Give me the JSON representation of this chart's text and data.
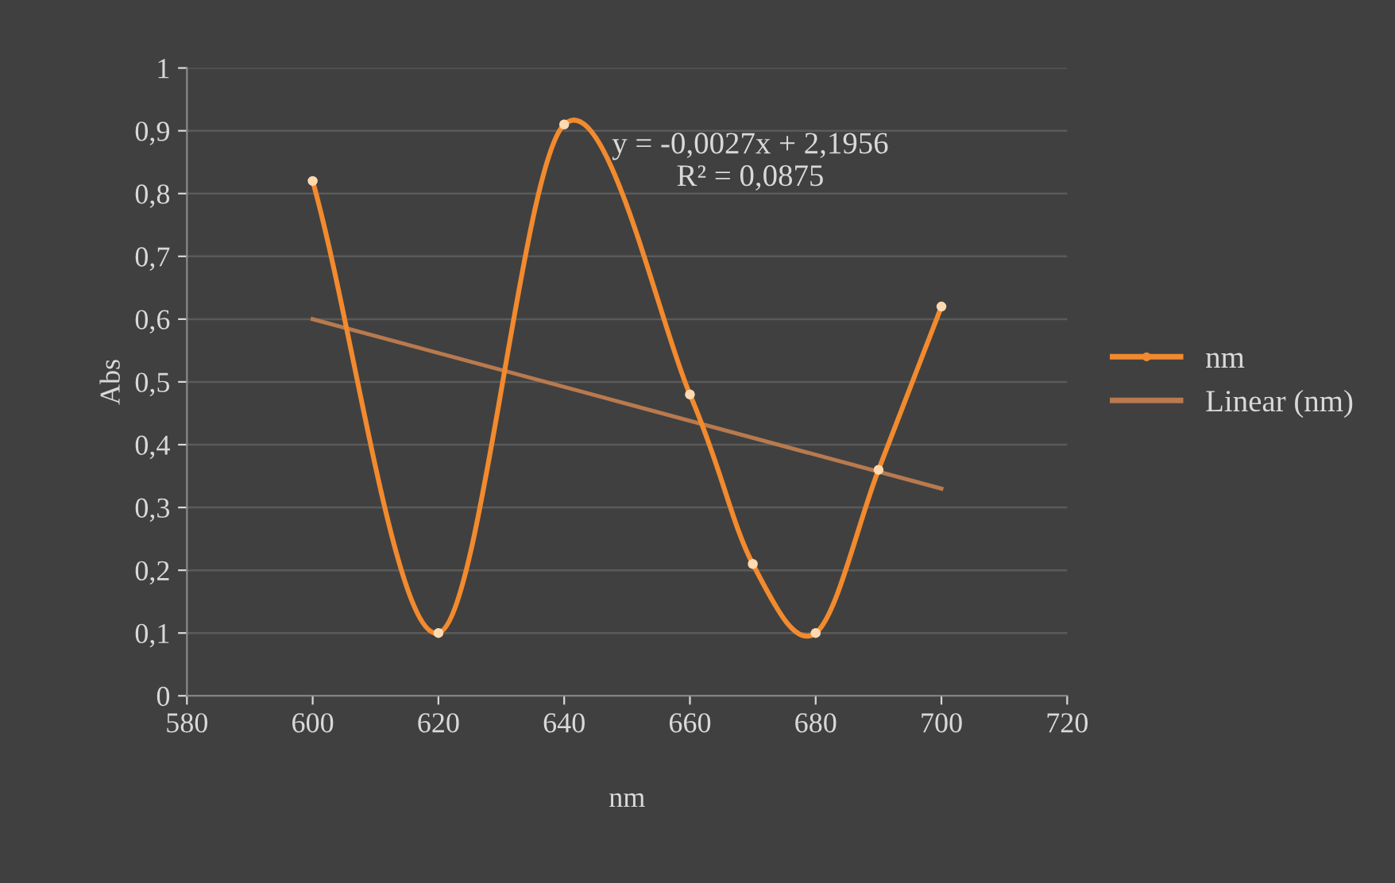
{
  "chart_data": {
    "type": "line",
    "xlabel": "nm",
    "ylabel": "Abs",
    "series": [
      {
        "name": "nm",
        "color": "#f28a2e",
        "x": [
          600,
          620,
          640,
          660,
          670,
          680,
          690,
          700
        ],
        "values": [
          0.82,
          0.1,
          0.91,
          0.48,
          0.21,
          0.1,
          0.36,
          0.62
        ],
        "marker": "circle"
      },
      {
        "name": "Linear (nm)",
        "type": "line",
        "color": "#b87a4e",
        "x": [
          600,
          700
        ],
        "values": [
          0.6,
          0.33
        ]
      }
    ],
    "annotations": [
      "y = -0,0027x + 2,1956\nR² = 0,0875"
    ],
    "xlim": [
      580,
      720
    ],
    "xticks": [
      580,
      600,
      620,
      640,
      660,
      680,
      700,
      720
    ],
    "ylim": [
      0,
      1
    ],
    "yticks": [
      0,
      {
        "value": 0.1,
        "label": "0,1"
      },
      {
        "value": 0.2,
        "label": "0,2"
      },
      {
        "value": 0.3,
        "label": "0,3"
      },
      {
        "value": 0.4,
        "label": "0,4"
      },
      {
        "value": 0.5,
        "label": "0,5"
      },
      {
        "value": 0.6,
        "label": "0,6"
      },
      {
        "value": 0.7,
        "label": "0,7"
      },
      {
        "value": 0.8,
        "label": "0,8"
      },
      {
        "value": 0.9,
        "label": "0,9"
      },
      1
    ],
    "grid": "y",
    "legend": "right"
  }
}
